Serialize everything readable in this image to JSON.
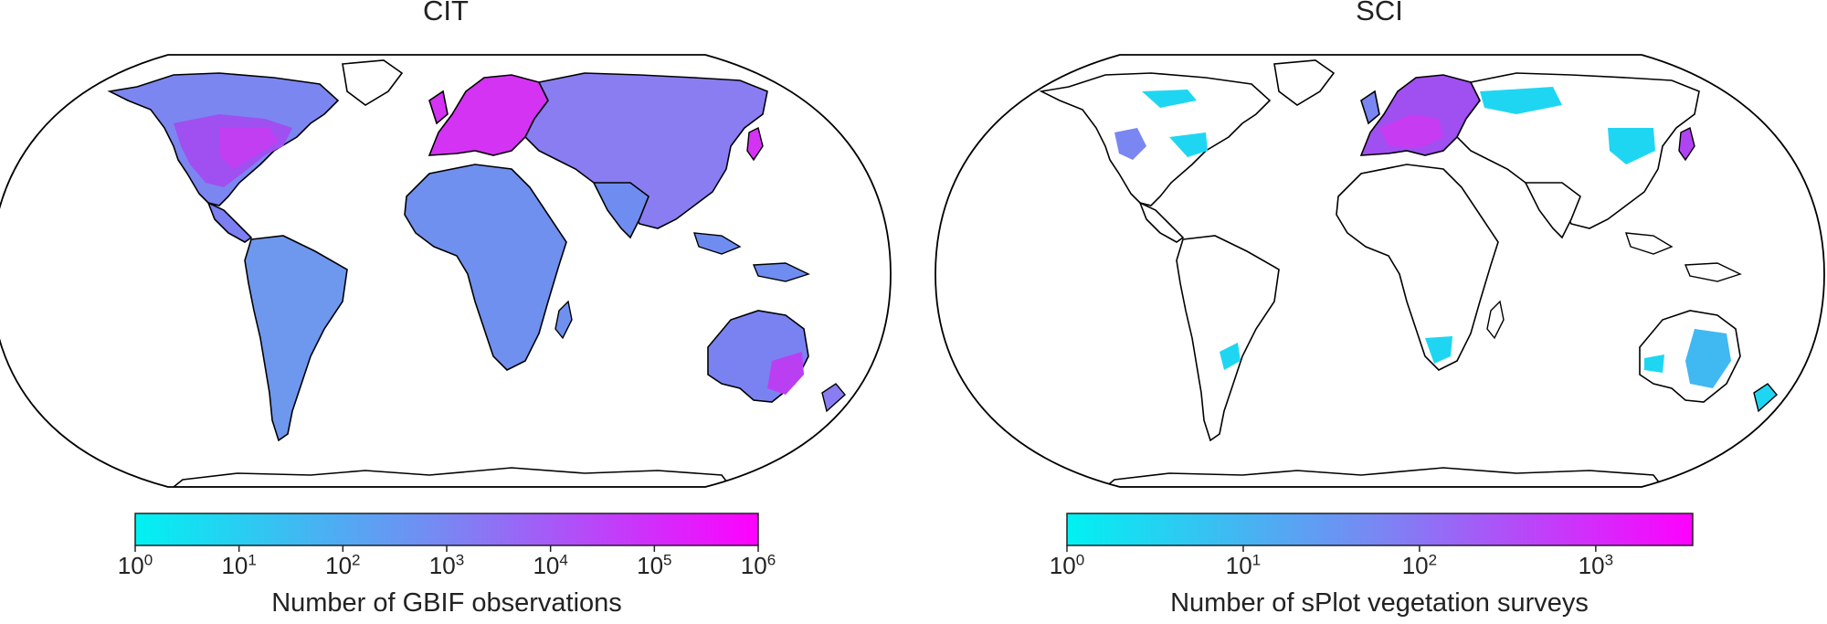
{
  "panels": [
    {
      "title": "CIT",
      "colorbar": {
        "label": "Number of GBIF observations",
        "colors": [
          "#00f2f2",
          "#ff00ff"
        ],
        "scale": "log",
        "ticks": [
          {
            "base": "10",
            "exp": "0"
          },
          {
            "base": "10",
            "exp": "1"
          },
          {
            "base": "10",
            "exp": "2"
          },
          {
            "base": "10",
            "exp": "3"
          },
          {
            "base": "10",
            "exp": "4"
          },
          {
            "base": "10",
            "exp": "5"
          },
          {
            "base": "10",
            "exp": "6"
          }
        ]
      }
    },
    {
      "title": "SCI",
      "colorbar": {
        "label": "Number of sPlot vegetation surveys",
        "colors": [
          "#00f2f2",
          "#ff00ff"
        ],
        "scale": "log",
        "ticks": [
          {
            "base": "10",
            "exp": "0"
          },
          {
            "base": "10",
            "exp": "1"
          },
          {
            "base": "10",
            "exp": "2"
          },
          {
            "base": "10",
            "exp": "3"
          }
        ]
      }
    }
  ],
  "colors": {
    "low": "#00f2f2",
    "mid": "#6f8df0",
    "high": "#ff00ff",
    "outline": "#000000"
  }
}
